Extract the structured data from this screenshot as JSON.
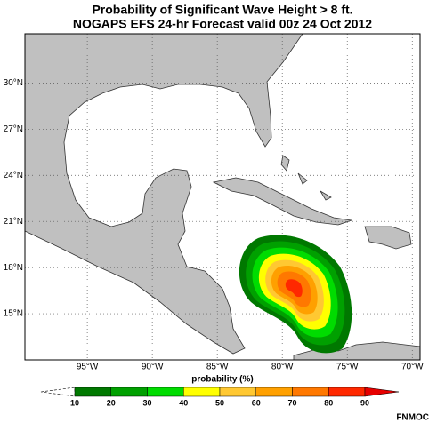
{
  "header": {
    "title": "Probability of Significant Wave Height > 8 ft.",
    "subtitle": "NOGAPS EFS 24-hr Forecast valid 00z 24 Oct 2012"
  },
  "map": {
    "lonlim": [
      -99.8,
      -69.4
    ],
    "latlim": [
      12,
      33.2
    ],
    "lon_ticks": [
      {
        "value": -95,
        "label": "95°W"
      },
      {
        "value": -90,
        "label": "90°W"
      },
      {
        "value": -85,
        "label": "85°W"
      },
      {
        "value": -80,
        "label": "80°W"
      },
      {
        "value": -75,
        "label": "75°W"
      },
      {
        "value": -70,
        "label": "70°W"
      }
    ],
    "lat_ticks": [
      {
        "value": 15,
        "label": "15°N"
      },
      {
        "value": 18,
        "label": "18°N"
      },
      {
        "value": 21,
        "label": "21°N"
      },
      {
        "value": 24,
        "label": "24°N"
      },
      {
        "value": 27,
        "label": "27°N"
      },
      {
        "value": 30,
        "label": "30°N"
      }
    ]
  },
  "colorbar": {
    "label": "probability (%)",
    "ticks": [
      10,
      20,
      30,
      40,
      50,
      60,
      70,
      80,
      90
    ],
    "colors": [
      "#007800",
      "#00a000",
      "#00dc00",
      "#ffff00",
      "#ffc832",
      "#ffa000",
      "#ff7800",
      "#ff2800",
      "#e60000"
    ]
  },
  "footer": {
    "credit": "FNMOC"
  }
}
